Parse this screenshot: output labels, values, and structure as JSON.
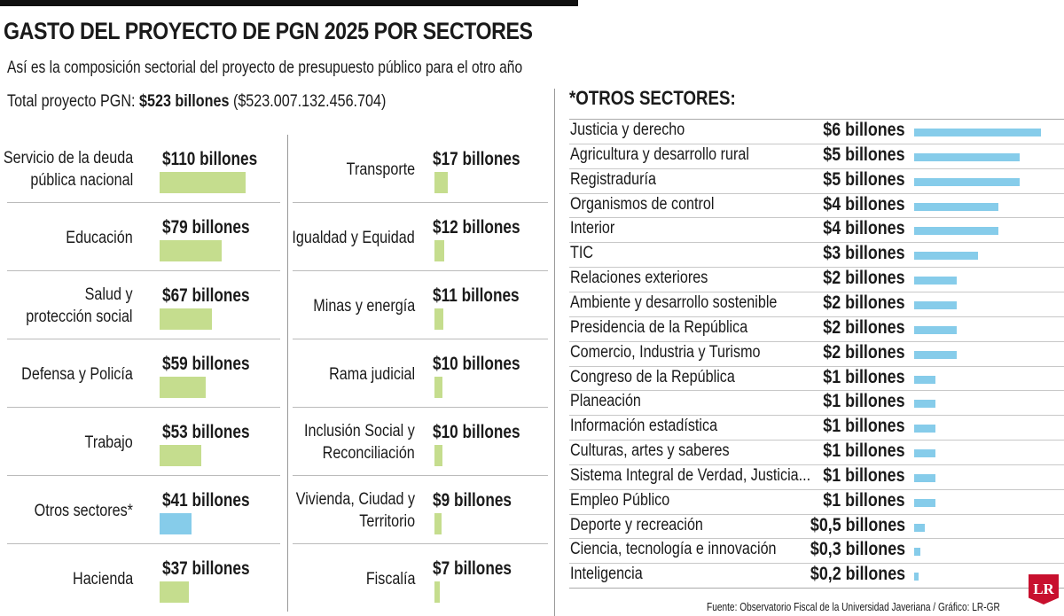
{
  "title": "GASTO DEL PROYECTO DE PGN 2025 POR SECTORES",
  "subtitle": "Así es la composición sectorial del proyecto de presupuesto público para el otro año",
  "total": {
    "label": "Total proyecto PGN:",
    "value": "$523 billones",
    "detail": "($523.007.132.456.704)"
  },
  "otros_title": "*OTROS SECTORES:",
  "source": "Fuente: Observatorio Fiscal de la Universidad Javeriana / Gráfico: LR-GR",
  "logo": "LR",
  "colors": {
    "main_bar": "#c5dd8e",
    "otros_bar": "#86ccea",
    "right_bar": "#86ccea"
  },
  "chart_data": [
    {
      "type": "bar",
      "title": "GASTO DEL PROYECTO DE PGN 2025 POR SECTORES",
      "unit": "billones",
      "categories": [
        "Servicio de la deuda pública nacional",
        "Educación",
        "Salud y protección social",
        "Defensa y Policía",
        "Trabajo",
        "Otros sectores*",
        "Hacienda",
        "Transporte",
        "Igualdad y Equidad",
        "Minas y energía",
        "Rama judicial",
        "Inclusión Social y Reconciliación",
        "Vivienda, Ciudad y Territorio",
        "Fiscalía"
      ],
      "values": [
        110,
        79,
        67,
        59,
        53,
        41,
        37,
        17,
        12,
        11,
        10,
        10,
        9,
        7
      ],
      "rows": [
        {
          "label_lines": [
            "Servicio de la deuda",
            "pública nacional"
          ],
          "value": 110,
          "text": "$110 billones",
          "highlight": false
        },
        {
          "label_lines": [
            "Educación"
          ],
          "value": 79,
          "text": "$79 billones",
          "highlight": false
        },
        {
          "label_lines": [
            "Salud y",
            "protección social"
          ],
          "value": 67,
          "text": "$67 billones",
          "highlight": false
        },
        {
          "label_lines": [
            "Defensa y Policía"
          ],
          "value": 59,
          "text": "$59 billones",
          "highlight": false
        },
        {
          "label_lines": [
            "Trabajo"
          ],
          "value": 53,
          "text": "$53 billones",
          "highlight": false
        },
        {
          "label_lines": [
            "Otros sectores*"
          ],
          "value": 41,
          "text": "$41 billones",
          "highlight": true
        },
        {
          "label_lines": [
            "Hacienda"
          ],
          "value": 37,
          "text": "$37 billones",
          "highlight": false
        },
        {
          "label_lines": [
            "Transporte"
          ],
          "value": 17,
          "text": "$17 billones",
          "highlight": false
        },
        {
          "label_lines": [
            "Igualdad y Equidad"
          ],
          "value": 12,
          "text": "$12 billones",
          "highlight": false
        },
        {
          "label_lines": [
            "Minas y energía"
          ],
          "value": 11,
          "text": "$11 billones",
          "highlight": false
        },
        {
          "label_lines": [
            "Rama judicial"
          ],
          "value": 10,
          "text": "$10 billones",
          "highlight": false
        },
        {
          "label_lines": [
            "Inclusión Social y",
            "Reconciliación"
          ],
          "value": 10,
          "text": "$10 billones",
          "highlight": false
        },
        {
          "label_lines": [
            "Vivienda, Ciudad y",
            "Territorio"
          ],
          "value": 9,
          "text": "$9 billones",
          "highlight": false
        },
        {
          "label_lines": [
            "Fiscalía"
          ],
          "value": 7,
          "text": "$7 billones",
          "highlight": false
        }
      ]
    },
    {
      "type": "bar",
      "title": "*OTROS SECTORES:",
      "unit": "billones",
      "categories": [
        "Justicia y derecho",
        "Agricultura y desarrollo rural",
        "Registraduría",
        "Organismos de control",
        "Interior",
        "TIC",
        "Relaciones exteriores",
        "Ambiente y desarrollo sostenible",
        "Presidencia de la República",
        "Comercio, Industria y Turismo",
        "Congreso de la República",
        "Planeación",
        "Información estadística",
        "Culturas, artes y saberes",
        "Sistema Integral de Verdad, Justicia...",
        "Empleo Público",
        "Deporte y recreación",
        "Ciencia, tecnología e innovación",
        "Inteligencia"
      ],
      "values": [
        6,
        5,
        5,
        4,
        4,
        3,
        2,
        2,
        2,
        2,
        1,
        1,
        1,
        1,
        1,
        1,
        0.5,
        0.3,
        0.2
      ],
      "value_texts": [
        "$6 billones",
        "$5 billones",
        "$5 billones",
        "$4 billones",
        "$4 billones",
        "$3 billones",
        "$2 billones",
        "$2 billones",
        "$2 billones",
        "$2 billones",
        "$1 billones",
        "$1 billones",
        "$1 billones",
        "$1 billones",
        "$1 billones",
        "$1 billones",
        "$0,5 billones",
        "$0,3 billones",
        "$0,2 billones"
      ]
    }
  ]
}
